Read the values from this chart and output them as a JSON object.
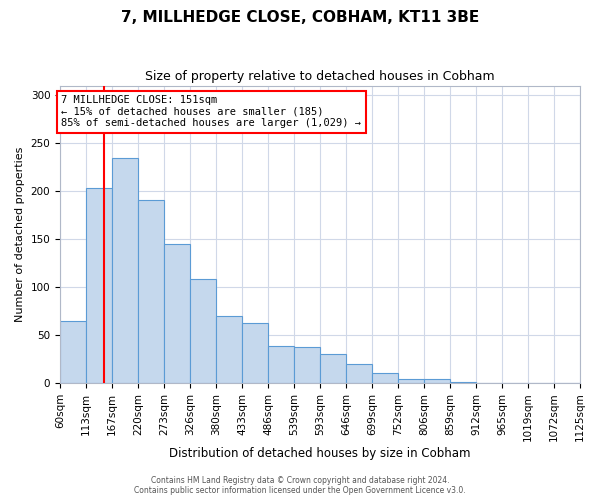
{
  "title": "7, MILLHEDGE CLOSE, COBHAM, KT11 3BE",
  "subtitle": "Size of property relative to detached houses in Cobham",
  "xlabel": "Distribution of detached houses by size in Cobham",
  "ylabel": "Number of detached properties",
  "bar_edges": [
    60,
    113,
    167,
    220,
    273,
    326,
    380,
    433,
    486,
    539,
    593,
    646,
    699,
    752,
    806,
    859,
    912,
    965,
    1019,
    1072,
    1125
  ],
  "bar_heights": [
    65,
    203,
    234,
    191,
    145,
    108,
    70,
    62,
    39,
    37,
    30,
    20,
    10,
    4,
    4,
    1,
    0,
    0,
    0,
    0
  ],
  "bar_color": "#c5d8ed",
  "bar_edge_color": "#5b9bd5",
  "red_line_x": 151,
  "ylim": [
    0,
    310
  ],
  "yticks": [
    0,
    50,
    100,
    150,
    200,
    250,
    300
  ],
  "annotation_title": "7 MILLHEDGE CLOSE: 151sqm",
  "annotation_line1": "← 15% of detached houses are smaller (185)",
  "annotation_line2": "85% of semi-detached houses are larger (1,029) →",
  "footer_line1": "Contains HM Land Registry data © Crown copyright and database right 2024.",
  "footer_line2": "Contains public sector information licensed under the Open Government Licence v3.0.",
  "background_color": "#ffffff",
  "grid_color": "#d0d8e8"
}
